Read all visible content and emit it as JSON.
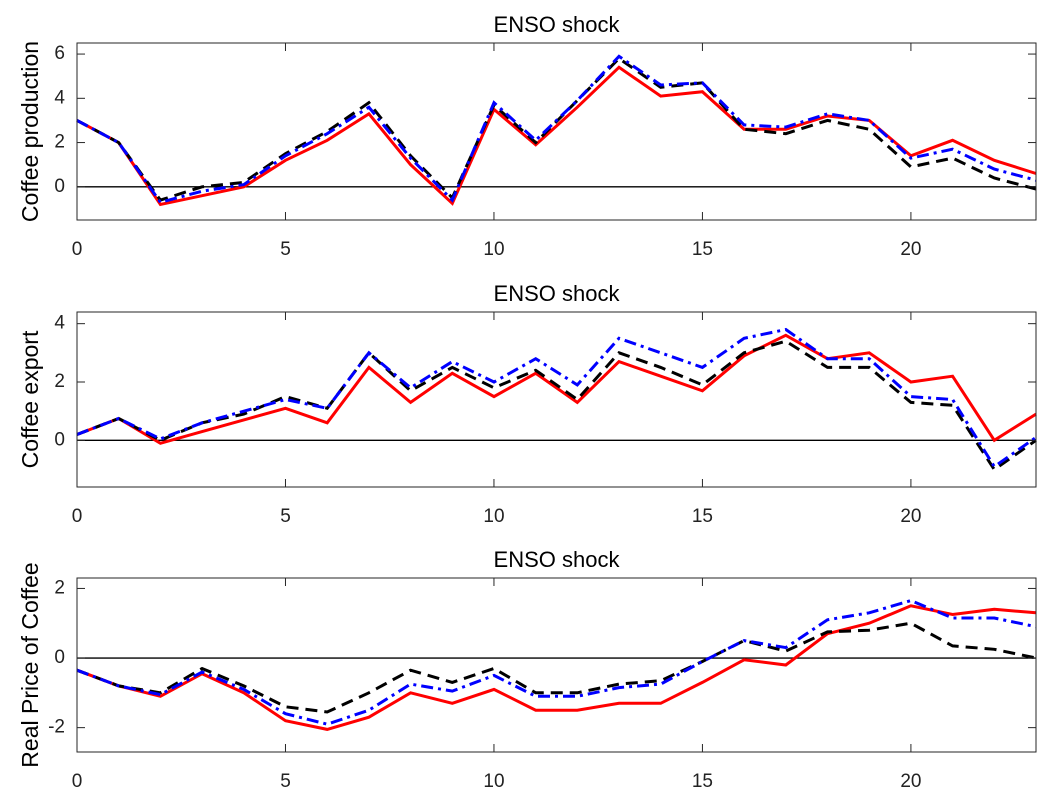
{
  "chart_data": [
    {
      "type": "line",
      "title": "ENSO shock",
      "y_label": "Coffee production",
      "x": [
        0,
        1,
        2,
        3,
        4,
        5,
        6,
        7,
        8,
        9,
        10,
        11,
        12,
        13,
        14,
        15,
        16,
        17,
        18,
        19,
        20,
        21,
        22,
        23
      ],
      "xlim": [
        0,
        23
      ],
      "xticks": [
        0,
        5,
        10,
        15,
        20
      ],
      "ylim": [
        -1.5,
        6.5
      ],
      "yticks": [
        0,
        2,
        4,
        6
      ],
      "reference_line": 0,
      "series": [
        {
          "color": "#ff0000",
          "line_style": "solid",
          "values": [
            3.0,
            2.0,
            -0.8,
            -0.4,
            0.0,
            1.2,
            2.1,
            3.3,
            1.0,
            -0.75,
            3.5,
            1.9,
            3.6,
            5.4,
            4.1,
            4.3,
            2.6,
            2.6,
            3.2,
            3.0,
            1.4,
            2.1,
            1.2,
            0.6
          ]
        },
        {
          "color": "#000000",
          "line_style": "dashed",
          "values": [
            3.0,
            2.0,
            -0.6,
            0.0,
            0.2,
            1.5,
            2.5,
            3.8,
            1.4,
            -0.5,
            3.7,
            2.0,
            3.9,
            5.8,
            4.5,
            4.7,
            2.6,
            2.4,
            3.0,
            2.6,
            0.9,
            1.3,
            0.4,
            -0.1
          ]
        },
        {
          "color": "#0000ff",
          "line_style": "dashdot",
          "values": [
            3.0,
            2.0,
            -0.7,
            -0.2,
            0.1,
            1.4,
            2.4,
            3.6,
            1.3,
            -0.6,
            3.8,
            2.1,
            3.9,
            5.9,
            4.6,
            4.7,
            2.8,
            2.7,
            3.3,
            3.0,
            1.3,
            1.7,
            0.8,
            0.3
          ]
        }
      ]
    },
    {
      "type": "line",
      "title": "ENSO shock",
      "y_label": "Coffee export",
      "x": [
        0,
        1,
        2,
        3,
        4,
        5,
        6,
        7,
        8,
        9,
        10,
        11,
        12,
        13,
        14,
        15,
        16,
        17,
        18,
        19,
        20,
        21,
        22,
        23
      ],
      "xlim": [
        0,
        23
      ],
      "xticks": [
        0,
        5,
        10,
        15,
        20
      ],
      "ylim": [
        -1.6,
        4.4
      ],
      "yticks": [
        0,
        2,
        4
      ],
      "reference_line": 0,
      "series": [
        {
          "color": "#ff0000",
          "line_style": "solid",
          "values": [
            0.2,
            0.75,
            -0.1,
            0.3,
            0.7,
            1.1,
            0.6,
            2.5,
            1.3,
            2.3,
            1.5,
            2.3,
            1.3,
            2.7,
            2.2,
            1.7,
            2.9,
            3.6,
            2.8,
            3.0,
            2.0,
            2.2,
            0.0,
            0.9
          ]
        },
        {
          "color": "#000000",
          "line_style": "dashed",
          "values": [
            0.2,
            0.75,
            0.0,
            0.6,
            0.9,
            1.5,
            1.1,
            3.0,
            1.7,
            2.5,
            1.8,
            2.4,
            1.4,
            3.0,
            2.5,
            1.9,
            3.0,
            3.4,
            2.5,
            2.5,
            1.3,
            1.2,
            -1.0,
            0.0
          ]
        },
        {
          "color": "#0000ff",
          "line_style": "dashdot",
          "values": [
            0.2,
            0.75,
            0.05,
            0.6,
            1.0,
            1.4,
            1.1,
            3.0,
            1.8,
            2.7,
            2.0,
            2.8,
            1.9,
            3.5,
            3.0,
            2.5,
            3.5,
            3.8,
            2.8,
            2.8,
            1.5,
            1.4,
            -0.9,
            0.1
          ]
        }
      ]
    },
    {
      "type": "line",
      "title": "ENSO shock",
      "y_label": "Real Price of Coffee",
      "x": [
        0,
        1,
        2,
        3,
        4,
        5,
        6,
        7,
        8,
        9,
        10,
        11,
        12,
        13,
        14,
        15,
        16,
        17,
        18,
        19,
        20,
        21,
        22,
        23
      ],
      "xlim": [
        0,
        23
      ],
      "xticks": [
        0,
        5,
        10,
        15,
        20
      ],
      "ylim": [
        -2.7,
        2.3
      ],
      "yticks": [
        -2,
        0,
        2
      ],
      "reference_line": 0,
      "series": [
        {
          "color": "#ff0000",
          "line_style": "solid",
          "values": [
            -0.35,
            -0.8,
            -1.1,
            -0.45,
            -1.0,
            -1.8,
            -2.05,
            -1.7,
            -1.0,
            -1.3,
            -0.9,
            -1.5,
            -1.5,
            -1.3,
            -1.3,
            -0.7,
            -0.05,
            -0.2,
            0.7,
            1.0,
            1.5,
            1.25,
            1.4,
            1.3
          ]
        },
        {
          "color": "#000000",
          "line_style": "dashed",
          "values": [
            -0.35,
            -0.8,
            -1.0,
            -0.3,
            -0.8,
            -1.4,
            -1.55,
            -1.0,
            -0.35,
            -0.7,
            -0.3,
            -1.0,
            -1.0,
            -0.75,
            -0.65,
            -0.1,
            0.5,
            0.2,
            0.75,
            0.8,
            1.0,
            0.35,
            0.25,
            0.0
          ]
        },
        {
          "color": "#0000ff",
          "line_style": "dashdot",
          "values": [
            -0.35,
            -0.8,
            -1.05,
            -0.4,
            -0.9,
            -1.6,
            -1.9,
            -1.5,
            -0.75,
            -0.95,
            -0.5,
            -1.1,
            -1.1,
            -0.85,
            -0.75,
            -0.1,
            0.5,
            0.3,
            1.1,
            1.3,
            1.65,
            1.15,
            1.15,
            0.9
          ]
        }
      ]
    }
  ]
}
